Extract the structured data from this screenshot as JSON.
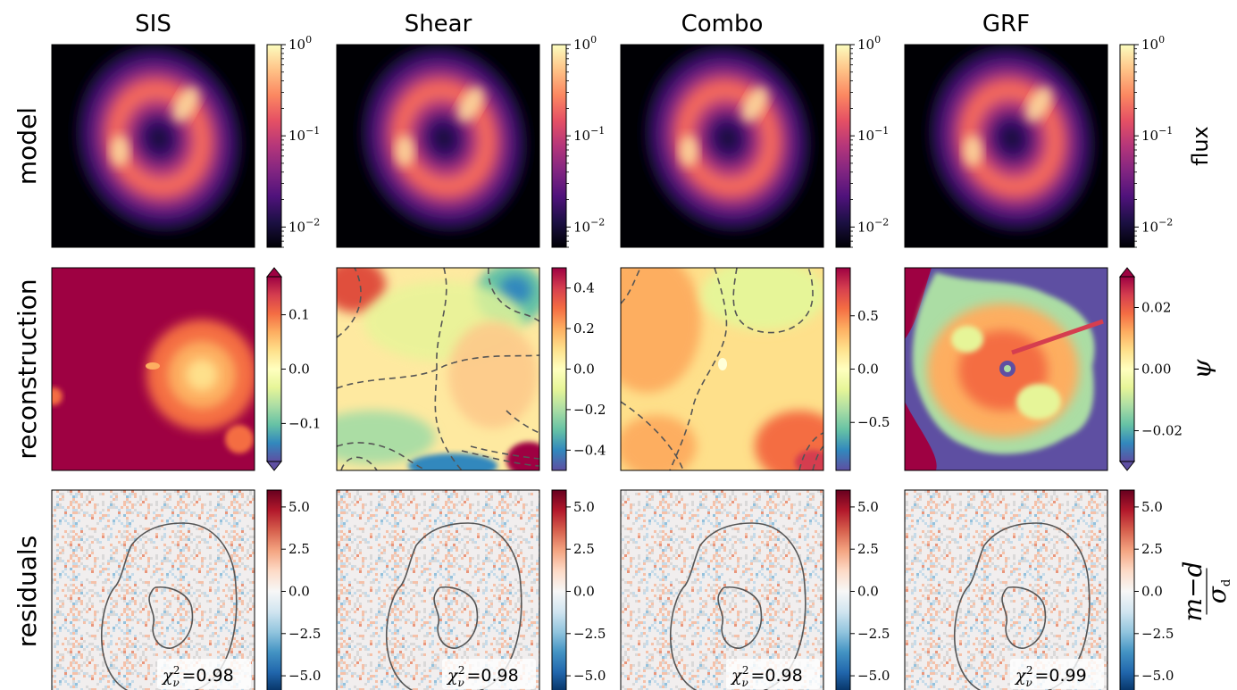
{
  "columns": [
    "SIS",
    "Shear",
    "Combo",
    "GRF"
  ],
  "rows": [
    "model",
    "reconstruction",
    "residuals"
  ],
  "colorbar_labels": {
    "model": "flux",
    "reconstruction": "ψ",
    "residuals_num": "m−d",
    "residuals_den": "σ_d"
  },
  "colorbars": {
    "model": {
      "scale": "log",
      "colormap": "magma",
      "ticks": [
        {
          "value": 1,
          "label": "10^0"
        },
        {
          "value": 0.1,
          "label": "10^-1"
        },
        {
          "value": 0.01,
          "label": "10^-2"
        }
      ],
      "range": [
        0.006,
        1
      ]
    },
    "reconstruction": [
      {
        "colormap": "Spectral_r",
        "range": [
          -0.17,
          0.17
        ],
        "extend": "both",
        "ticks": [
          {
            "value": 0.1,
            "label": "0.1"
          },
          {
            "value": 0.0,
            "label": "0.0"
          },
          {
            "value": -0.1,
            "label": "−0.1"
          }
        ]
      },
      {
        "colormap": "Spectral_r",
        "range": [
          -0.5,
          0.5
        ],
        "extend": "none",
        "ticks": [
          {
            "value": 0.4,
            "label": "0.4"
          },
          {
            "value": 0.2,
            "label": "0.2"
          },
          {
            "value": 0.0,
            "label": "0.0"
          },
          {
            "value": -0.2,
            "label": "−0.2"
          },
          {
            "value": -0.4,
            "label": "−0.4"
          }
        ]
      },
      {
        "colormap": "Spectral_r",
        "range": [
          -0.95,
          0.95
        ],
        "extend": "none",
        "ticks": [
          {
            "value": 0.5,
            "label": "0.5"
          },
          {
            "value": 0.0,
            "label": "0.0"
          },
          {
            "value": -0.5,
            "label": "−0.5"
          }
        ]
      },
      {
        "colormap": "Spectral_r",
        "range": [
          -0.03,
          0.03
        ],
        "extend": "both",
        "ticks": [
          {
            "value": 0.02,
            "label": "0.02"
          },
          {
            "value": 0.0,
            "label": "0.00"
          },
          {
            "value": -0.02,
            "label": "−0.02"
          }
        ]
      }
    ],
    "residuals": {
      "colormap": "RdBu_r",
      "range": [
        -6,
        6
      ],
      "ticks": [
        {
          "value": 5,
          "label": "5.0"
        },
        {
          "value": 2.5,
          "label": "2.5"
        },
        {
          "value": 0,
          "label": "0.0"
        },
        {
          "value": -2.5,
          "label": "−2.5"
        },
        {
          "value": -5,
          "label": "−5.0"
        }
      ]
    }
  },
  "chi2": {
    "symbol": "χ",
    "sub": "ν",
    "sup": "2",
    "values": [
      "=0.98",
      "=0.98",
      "=0.98",
      "=0.99"
    ]
  },
  "colors": {
    "frame": "#000000",
    "contour": "#555555",
    "recon_sis_bg": "#9e0142",
    "recon_grf_bg": "#5e4fa2"
  }
}
